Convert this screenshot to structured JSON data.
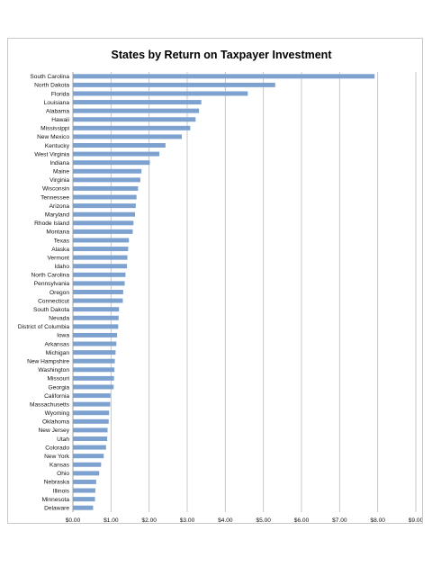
{
  "chart_data": {
    "type": "bar",
    "orientation": "horizontal",
    "title": "States by Return on Taxpayer Investment",
    "xlabel": "",
    "ylabel": "",
    "xlim": [
      0,
      9
    ],
    "grid": true,
    "legend": "none",
    "bar_color": "#7ea2d0",
    "x_ticks": [
      "$0.00",
      "$1.00",
      "$2.00",
      "$3.00",
      "$4.00",
      "$5.00",
      "$6.00",
      "$7.00",
      "$8.00",
      "$9.00"
    ],
    "categories": [
      "South Carolina",
      "North Dakota",
      "Florida",
      "Louisiana",
      "Alabama",
      "Hawaii",
      "Mississippi",
      "New Mexico",
      "Kentucky",
      "West Virginia",
      "Indiana",
      "Maine",
      "Virginia",
      "Wisconsin",
      "Tennessee",
      "Arizona",
      "Maryland",
      "Rhode Island",
      "Montana",
      "Texas",
      "Alaska",
      "Vermont",
      "Idaho",
      "North Carolina",
      "Pennsylvania",
      "Oregon",
      "Connecticut",
      "South Dakota",
      "Nevada",
      "District of Columbia",
      "Iowa",
      "Arkansas",
      "Michigan",
      "New Hampshire",
      "Washington",
      "Missouri",
      "Georgia",
      "California",
      "Massachusetts",
      "Wyoming",
      "Oklahoma",
      "New Jersey",
      "Utah",
      "Colorado",
      "New York",
      "Kansas",
      "Ohio",
      "Nebraska",
      "Illinois",
      "Minnesota",
      "Delaware"
    ],
    "values": [
      7.92,
      5.31,
      4.59,
      3.37,
      3.31,
      3.22,
      3.08,
      2.86,
      2.43,
      2.27,
      2.02,
      1.8,
      1.77,
      1.71,
      1.67,
      1.65,
      1.63,
      1.59,
      1.57,
      1.47,
      1.45,
      1.43,
      1.42,
      1.38,
      1.36,
      1.32,
      1.31,
      1.21,
      1.2,
      1.19,
      1.16,
      1.14,
      1.12,
      1.1,
      1.09,
      1.08,
      1.07,
      0.99,
      0.98,
      0.95,
      0.94,
      0.91,
      0.9,
      0.87,
      0.81,
      0.74,
      0.69,
      0.61,
      0.59,
      0.58,
      0.53
    ]
  }
}
